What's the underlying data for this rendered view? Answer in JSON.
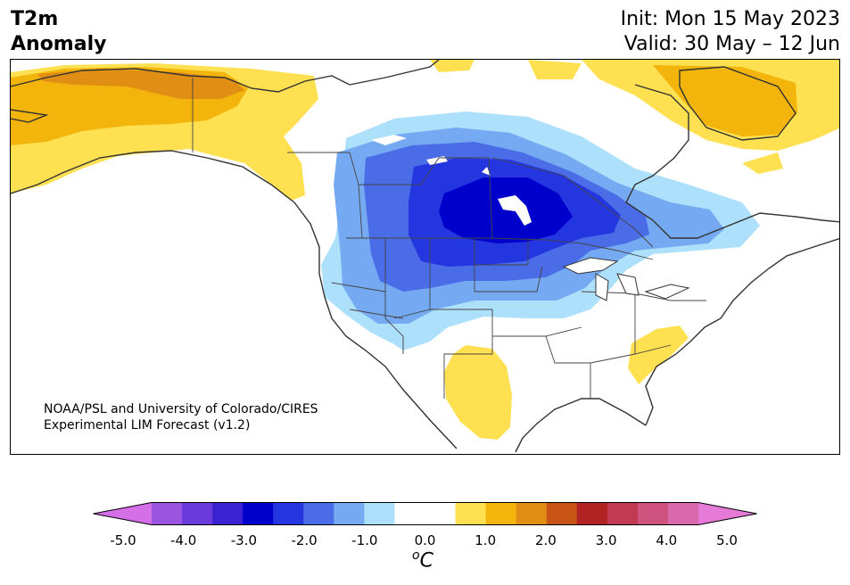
{
  "header": {
    "title_line1": "T2m",
    "title_line2": "Anomaly",
    "init": "Init: Mon 15 May 2023",
    "valid": "Valid: 30 May – 12 Jun"
  },
  "credit": {
    "line1": "NOAA/PSL and University of Colorado/CIRES",
    "line2": "Experimental LIM Forecast (v1.2)"
  },
  "colorbar": {
    "ticks": [
      "-5.0",
      "-4.0",
      "-3.0",
      "-2.0",
      "-1.0",
      "0.0",
      "1.0",
      "2.0",
      "3.0",
      "4.0",
      "5.0"
    ],
    "colors": [
      "#d56fe8",
      "#9b54e0",
      "#6b3adc",
      "#3a22d2",
      "#0000cc",
      "#2436e0",
      "#4a6ce6",
      "#75aaf2",
      "#ade0fb",
      "#ffffff",
      "#ffffff",
      "#ffe050",
      "#f3b50c",
      "#e08e14",
      "#c85416",
      "#b12222",
      "#c23a52",
      "#cf527e",
      "#d969ad",
      "#e67ad8"
    ],
    "unit_base": "C",
    "unit_sup": "o"
  },
  "map": {
    "region": "North America",
    "anomaly_colors": {
      "light_blue": "#ade0fb",
      "mid_blue": "#75aaf2",
      "blue": "#4a6ce6",
      "deep_blue": "#2436e0",
      "core_blue": "#0000cc",
      "yellow": "#ffe050",
      "gold": "#f3b50c",
      "orange": "#e08e14"
    }
  }
}
